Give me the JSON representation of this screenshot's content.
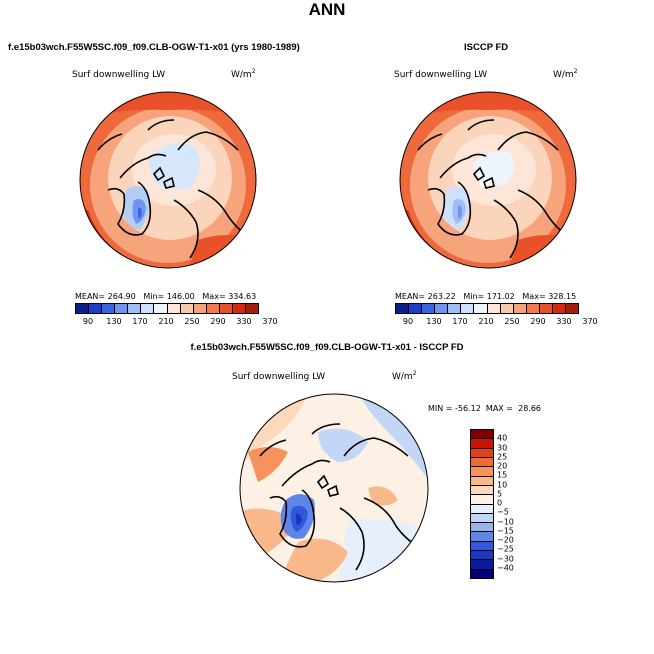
{
  "title": "ANN",
  "panels": {
    "model": {
      "header": "f.e15b03wch.F55W5SC.f09_f09.CLB-OGW-T1-x01 (yrs 1980-1989)",
      "variable": "Surf downwelling LW",
      "units": "W/m",
      "units_exp": "2",
      "mean_label": "MEAN=",
      "mean": "264.90",
      "min_label": "Min=",
      "min": "146.00",
      "max_label": "Max=",
      "max": "334.63"
    },
    "obs": {
      "header": "ISCCP FD",
      "variable": "Surf downwelling LW",
      "units": "W/m",
      "units_exp": "2",
      "mean_label": "MEAN=",
      "mean": "263.22",
      "min_label": "Min=",
      "min": "171.02",
      "max_label": "Max=",
      "max": "328.15"
    },
    "diff": {
      "header": "f.e15b03wch.F55W5SC.f09_f09.CLB-OGW-T1-x01 - ISCCP FD",
      "variable": "Surf downwelling LW",
      "units": "W/m",
      "units_exp": "2",
      "minmax": "MIN = -56.12  MAX =  28.66"
    }
  },
  "abs_colorbar": {
    "colors": [
      "#0a1e8c",
      "#1e3cc8",
      "#3a64e6",
      "#6e96f0",
      "#a0bef5",
      "#cfe0fa",
      "#eef4fc",
      "#fde6d8",
      "#fcc8ac",
      "#f9a07a",
      "#f37a50",
      "#e9512a",
      "#d72a0c",
      "#a81b06"
    ],
    "tick_labels": [
      "90",
      "130",
      "170",
      "210",
      "250",
      "290",
      "330",
      "370"
    ]
  },
  "diff_colorbar": {
    "colors": [
      "#7e0000",
      "#c81400",
      "#e0401a",
      "#f06a3a",
      "#f5925e",
      "#f9b88a",
      "#fcd8bc",
      "#fdf0e4",
      "#e6effb",
      "#c2d6f6",
      "#94b5ef",
      "#5e86e8",
      "#3057dc",
      "#1a36c4",
      "#0a1aa0",
      "#000078"
    ],
    "tick_labels": [
      "40",
      "30",
      "25",
      "20",
      "15",
      "10",
      "5",
      "0",
      "−5",
      "−10",
      "−15",
      "−20",
      "−25",
      "−30",
      "−40"
    ]
  }
}
